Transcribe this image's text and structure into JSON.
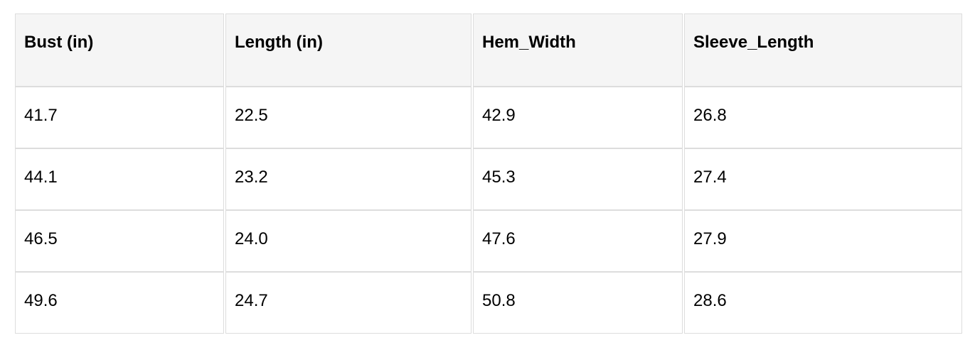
{
  "table": {
    "headers": [
      "Bust (in)",
      "Length (in)",
      "Hem_Width",
      "Sleeve_Length"
    ],
    "rows": [
      [
        "41.7",
        "22.5",
        "42.9",
        "26.8"
      ],
      [
        "44.1",
        "23.2",
        "45.3",
        "27.4"
      ],
      [
        "46.5",
        "24.0",
        "47.6",
        "27.9"
      ],
      [
        "49.6",
        "24.7",
        "50.8",
        "28.6"
      ]
    ]
  }
}
